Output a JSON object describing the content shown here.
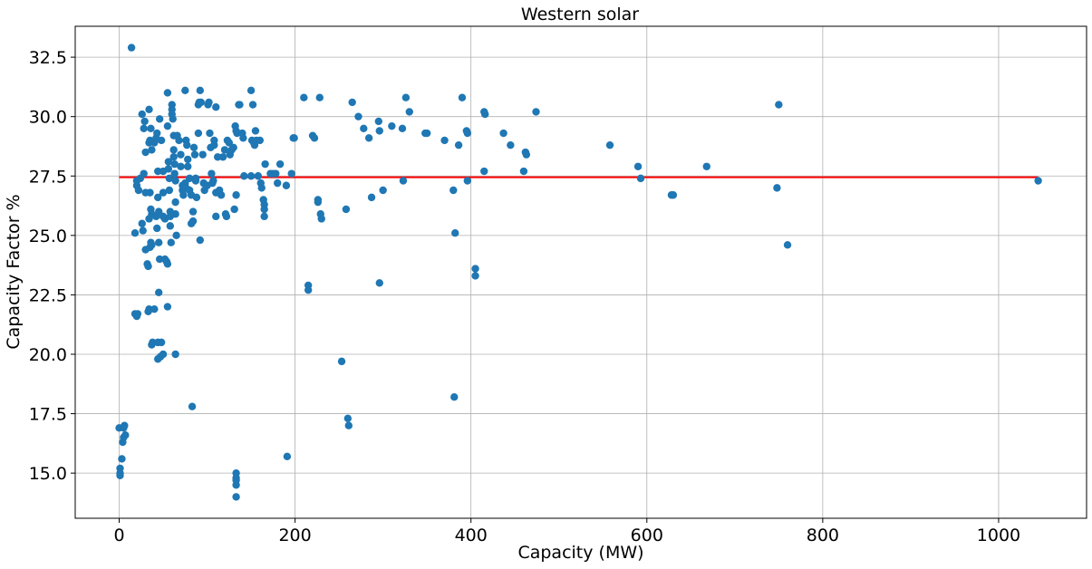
{
  "chart_data": {
    "type": "scatter",
    "title": "Western solar",
    "xlabel": "Capacity (MW)",
    "ylabel": "Capacity Factor %",
    "xlim": [
      -50,
      1100
    ],
    "ylim": [
      13.1,
      33.8
    ],
    "xticks": [
      0,
      200,
      400,
      600,
      800,
      1000
    ],
    "yticks": [
      15.0,
      17.5,
      20.0,
      22.5,
      25.0,
      27.5,
      30.0,
      32.5
    ],
    "xtick_labels": [
      "0",
      "200",
      "400",
      "600",
      "800",
      "1000"
    ],
    "ytick_labels": [
      "15.0",
      "17.5",
      "20.0",
      "22.5",
      "25.0",
      "27.5",
      "30.0",
      "32.5"
    ],
    "grid": true,
    "colors": {
      "points": "#1f77b4",
      "mean_line": "#ff0000"
    },
    "mean_line": {
      "x": [
        0,
        1045
      ],
      "y": [
        27.45,
        27.45
      ]
    },
    "points": [
      [
        14,
        32.9
      ],
      [
        0,
        16.9
      ],
      [
        1,
        15.2
      ],
      [
        1,
        15.0
      ],
      [
        1,
        14.9
      ],
      [
        3,
        15.6
      ],
      [
        4,
        16.3
      ],
      [
        5,
        16.9
      ],
      [
        6,
        17.0
      ],
      [
        7,
        16.6
      ],
      [
        5,
        16.5
      ],
      [
        18,
        21.7
      ],
      [
        20,
        21.6
      ],
      [
        21,
        21.7
      ],
      [
        18,
        25.1
      ],
      [
        20,
        27.1
      ],
      [
        22,
        26.9
      ],
      [
        24,
        27.4
      ],
      [
        20,
        27.3
      ],
      [
        26,
        30.1
      ],
      [
        28,
        29.5
      ],
      [
        29,
        29.8
      ],
      [
        30,
        28.5
      ],
      [
        28,
        27.6
      ],
      [
        30,
        26.8
      ],
      [
        27,
        25.2
      ],
      [
        26,
        25.5
      ],
      [
        30,
        24.4
      ],
      [
        32,
        23.8
      ],
      [
        33,
        23.7
      ],
      [
        34,
        30.3
      ],
      [
        35,
        29.0
      ],
      [
        36,
        29.5
      ],
      [
        34,
        28.9
      ],
      [
        37,
        28.6
      ],
      [
        35,
        26.8
      ],
      [
        36,
        26.1
      ],
      [
        37,
        25.9
      ],
      [
        34,
        25.7
      ],
      [
        36,
        24.7
      ],
      [
        35,
        24.5
      ],
      [
        37,
        24.6
      ],
      [
        34,
        21.9
      ],
      [
        33,
        21.8
      ],
      [
        38,
        20.5
      ],
      [
        37,
        20.4
      ],
      [
        40,
        21.9
      ],
      [
        40,
        28.9
      ],
      [
        42,
        29.1
      ],
      [
        43,
        29.3
      ],
      [
        44,
        27.7
      ],
      [
        44,
        26.6
      ],
      [
        45,
        26.0
      ],
      [
        42,
        25.8
      ],
      [
        43,
        25.3
      ],
      [
        45,
        24.7
      ],
      [
        46,
        24.0
      ],
      [
        45,
        22.6
      ],
      [
        44,
        20.5
      ],
      [
        48,
        20.5
      ],
      [
        44,
        19.8
      ],
      [
        47,
        19.9
      ],
      [
        50,
        20.0
      ],
      [
        46,
        29.9
      ],
      [
        48,
        29.0
      ],
      [
        50,
        27.7
      ],
      [
        50,
        26.8
      ],
      [
        50,
        25.8
      ],
      [
        52,
        25.7
      ],
      [
        52,
        24.0
      ],
      [
        54,
        23.9
      ],
      [
        55,
        23.8
      ],
      [
        55,
        22.0
      ],
      [
        55,
        31.0
      ],
      [
        55,
        29.6
      ],
      [
        56,
        28.1
      ],
      [
        56,
        27.8
      ],
      [
        57,
        27.4
      ],
      [
        57,
        26.9
      ],
      [
        58,
        26.0
      ],
      [
        58,
        25.8
      ],
      [
        58,
        25.4
      ],
      [
        59,
        24.7
      ],
      [
        60,
        30.5
      ],
      [
        60,
        30.3
      ],
      [
        60,
        30.1
      ],
      [
        61,
        29.9
      ],
      [
        62,
        29.2
      ],
      [
        62,
        28.6
      ],
      [
        62,
        28.3
      ],
      [
        63,
        28.0
      ],
      [
        63,
        27.6
      ],
      [
        64,
        27.3
      ],
      [
        64,
        26.4
      ],
      [
        64,
        25.9
      ],
      [
        65,
        25.0
      ],
      [
        64,
        20.0
      ],
      [
        66,
        29.2
      ],
      [
        68,
        29.0
      ],
      [
        70,
        28.4
      ],
      [
        70,
        27.9
      ],
      [
        72,
        27.1
      ],
      [
        72,
        26.9
      ],
      [
        73,
        26.7
      ],
      [
        75,
        27.2
      ],
      [
        76,
        27.0
      ],
      [
        75,
        31.1
      ],
      [
        76,
        29.0
      ],
      [
        77,
        28.8
      ],
      [
        78,
        28.2
      ],
      [
        78,
        27.9
      ],
      [
        80,
        27.4
      ],
      [
        80,
        26.9
      ],
      [
        82,
        25.5
      ],
      [
        84,
        25.6
      ],
      [
        84,
        26.0
      ],
      [
        82,
        26.7
      ],
      [
        83,
        17.8
      ],
      [
        85,
        28.7
      ],
      [
        86,
        28.4
      ],
      [
        87,
        27.4
      ],
      [
        87,
        27.3
      ],
      [
        88,
        26.6
      ],
      [
        90,
        29.3
      ],
      [
        90,
        30.5
      ],
      [
        91,
        30.6
      ],
      [
        92,
        31.1
      ],
      [
        93,
        30.6
      ],
      [
        92,
        24.8
      ],
      [
        95,
        28.4
      ],
      [
        96,
        27.2
      ],
      [
        97,
        26.9
      ],
      [
        100,
        27.1
      ],
      [
        101,
        30.5
      ],
      [
        102,
        30.6
      ],
      [
        103,
        29.3
      ],
      [
        104,
        28.7
      ],
      [
        105,
        27.6
      ],
      [
        106,
        27.2
      ],
      [
        107,
        27.3
      ],
      [
        108,
        29.0
      ],
      [
        108,
        28.8
      ],
      [
        110,
        30.4
      ],
      [
        110,
        26.8
      ],
      [
        110,
        25.8
      ],
      [
        112,
        28.3
      ],
      [
        114,
        26.9
      ],
      [
        116,
        26.7
      ],
      [
        118,
        28.3
      ],
      [
        120,
        28.6
      ],
      [
        121,
        25.9
      ],
      [
        122,
        25.8
      ],
      [
        123,
        29.0
      ],
      [
        125,
        28.9
      ],
      [
        126,
        28.4
      ],
      [
        128,
        28.6
      ],
      [
        130,
        28.7
      ],
      [
        131,
        26.1
      ],
      [
        132,
        29.6
      ],
      [
        133,
        29.4
      ],
      [
        133,
        26.7
      ],
      [
        134,
        29.3
      ],
      [
        136,
        30.5
      ],
      [
        137,
        30.5
      ],
      [
        140,
        29.3
      ],
      [
        141,
        29.1
      ],
      [
        142,
        27.5
      ],
      [
        133,
        15.0
      ],
      [
        133,
        14.8
      ],
      [
        133,
        14.7
      ],
      [
        133,
        14.5
      ],
      [
        133,
        14.0
      ],
      [
        150,
        27.5
      ],
      [
        150,
        31.1
      ],
      [
        151,
        29.0
      ],
      [
        152,
        30.5
      ],
      [
        153,
        28.9
      ],
      [
        154,
        28.8
      ],
      [
        155,
        29.4
      ],
      [
        156,
        29.0
      ],
      [
        158,
        27.5
      ],
      [
        160,
        29.0
      ],
      [
        161,
        27.2
      ],
      [
        162,
        27.0
      ],
      [
        164,
        26.5
      ],
      [
        165,
        26.3
      ],
      [
        165,
        26.1
      ],
      [
        165,
        25.8
      ],
      [
        166,
        28.0
      ],
      [
        172,
        27.6
      ],
      [
        175,
        27.6
      ],
      [
        178,
        27.6
      ],
      [
        180,
        27.2
      ],
      [
        183,
        28.0
      ],
      [
        190,
        27.1
      ],
      [
        191,
        15.7
      ],
      [
        196,
        27.6
      ],
      [
        198,
        29.1
      ],
      [
        199,
        29.1
      ],
      [
        210,
        30.8
      ],
      [
        215,
        22.9
      ],
      [
        215,
        22.7
      ],
      [
        220,
        29.2
      ],
      [
        222,
        29.1
      ],
      [
        226,
        26.5
      ],
      [
        226,
        26.4
      ],
      [
        228,
        30.8
      ],
      [
        229,
        25.9
      ],
      [
        230,
        25.7
      ],
      [
        253,
        19.7
      ],
      [
        258,
        26.1
      ],
      [
        260,
        17.3
      ],
      [
        261,
        17.0
      ],
      [
        265,
        30.6
      ],
      [
        272,
        30.0
      ],
      [
        278,
        29.5
      ],
      [
        284,
        29.1
      ],
      [
        287,
        26.6
      ],
      [
        295,
        29.8
      ],
      [
        296,
        29.4
      ],
      [
        296,
        23.0
      ],
      [
        300,
        26.9
      ],
      [
        310,
        29.6
      ],
      [
        322,
        29.5
      ],
      [
        323,
        27.3
      ],
      [
        326,
        30.8
      ],
      [
        330,
        30.2
      ],
      [
        348,
        29.3
      ],
      [
        350,
        29.3
      ],
      [
        370,
        29.0
      ],
      [
        380,
        26.9
      ],
      [
        381,
        18.2
      ],
      [
        382,
        25.1
      ],
      [
        386,
        28.8
      ],
      [
        390,
        30.8
      ],
      [
        395,
        29.4
      ],
      [
        396,
        29.3
      ],
      [
        396,
        27.3
      ],
      [
        405,
        23.6
      ],
      [
        405,
        23.3
      ],
      [
        415,
        27.7
      ],
      [
        415,
        30.2
      ],
      [
        416,
        30.1
      ],
      [
        437,
        29.3
      ],
      [
        445,
        28.8
      ],
      [
        460,
        27.7
      ],
      [
        462,
        28.5
      ],
      [
        463,
        28.4
      ],
      [
        474,
        30.2
      ],
      [
        558,
        28.8
      ],
      [
        590,
        27.9
      ],
      [
        593,
        27.4
      ],
      [
        628,
        26.7
      ],
      [
        630,
        26.7
      ],
      [
        668,
        27.9
      ],
      [
        748,
        27.0
      ],
      [
        750,
        30.5
      ],
      [
        760,
        24.6
      ],
      [
        1045,
        27.3
      ]
    ]
  }
}
